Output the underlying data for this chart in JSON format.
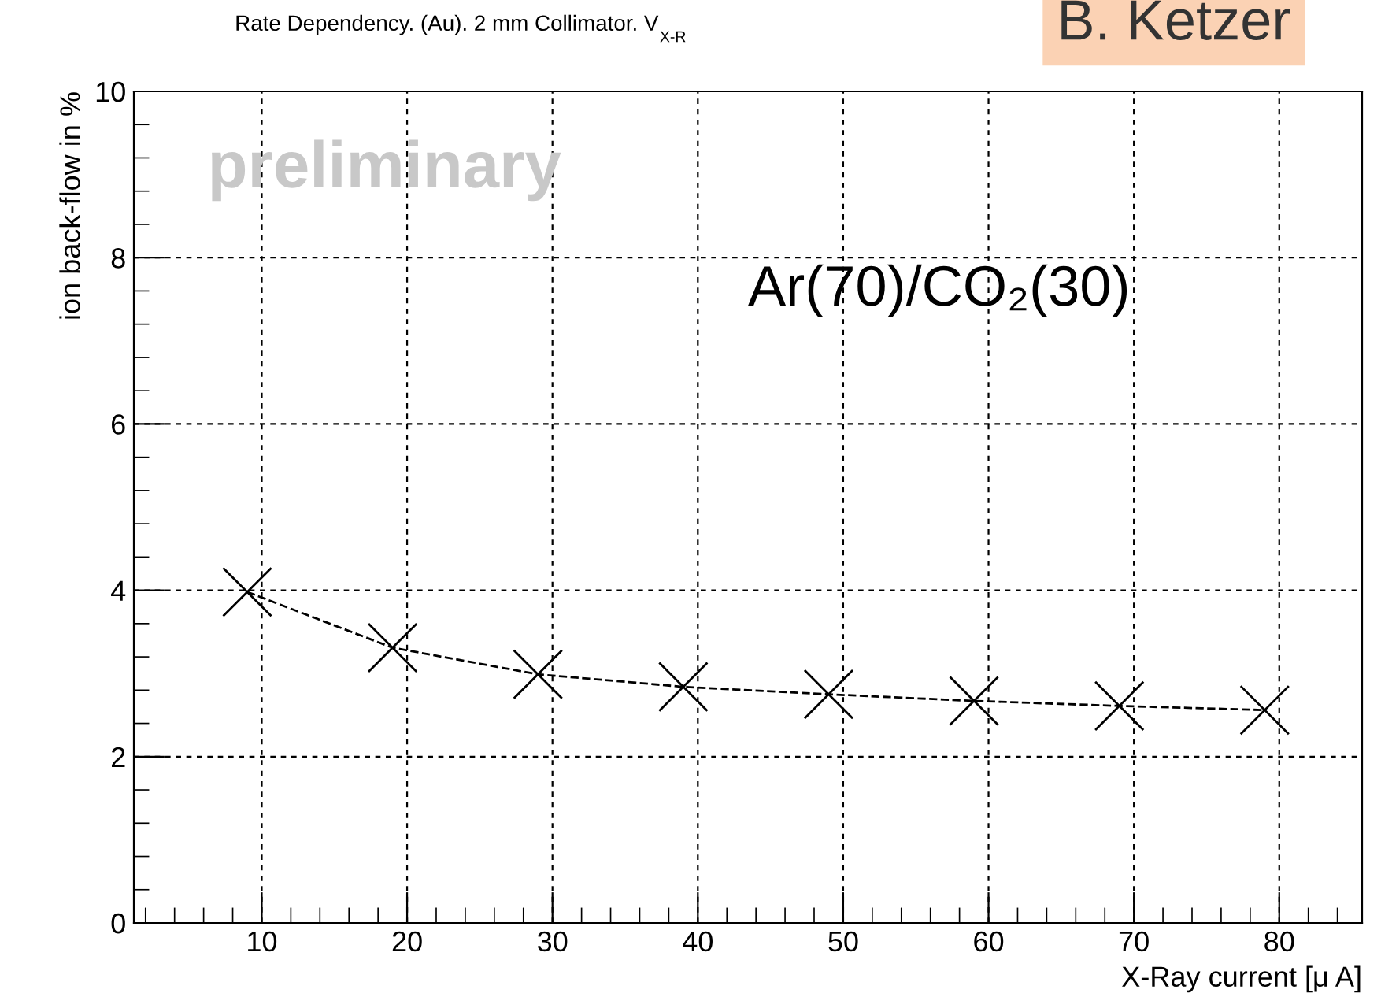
{
  "chart_data": {
    "type": "line",
    "title": "Rate Dependency. (Au). 2 mm Collimator. V$_{X-R}$",
    "xlabel": "X-Ray current [μ A]",
    "ylabel": "ion back-flow in %",
    "x": [
      9,
      19,
      29,
      39,
      49,
      59,
      69,
      79
    ],
    "series": [
      {
        "color": "#000000",
        "values": [
          3.98,
          3.31,
          2.99,
          2.84,
          2.75,
          2.67,
          2.61,
          2.56
        ]
      }
    ],
    "marker": "cross",
    "line_style": "dashed",
    "grid": true,
    "xlim": [
      1.2,
      85.7
    ],
    "xticks": [
      10,
      20,
      30,
      40,
      50,
      60,
      70,
      80
    ],
    "ylim": [
      0,
      10
    ],
    "yticks": [
      0,
      2,
      4,
      6,
      8,
      10
    ],
    "annotations": [
      "preliminary",
      "Ar(70)/CO₂(30)",
      "B. Ketzer"
    ]
  }
}
